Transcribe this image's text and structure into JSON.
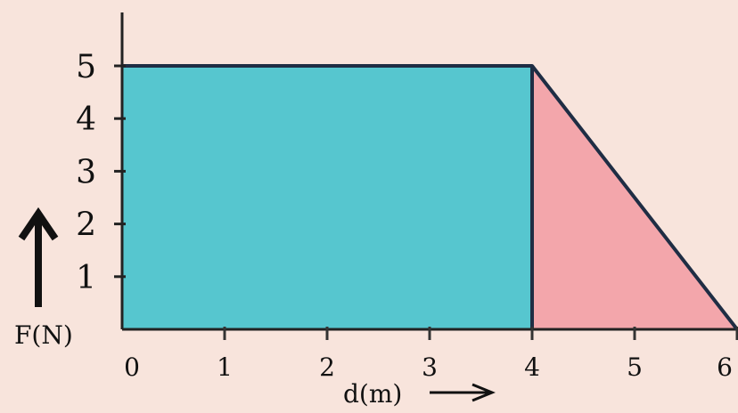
{
  "chart_data": {
    "type": "area",
    "xlabel": "d(m)",
    "ylabel": "F(N)",
    "xlim": [
      0,
      6
    ],
    "ylim": [
      0,
      5
    ],
    "x_ticks": [
      "0",
      "1",
      "2",
      "3",
      "4",
      "5",
      "6"
    ],
    "y_ticks": [
      "1",
      "2",
      "3",
      "4",
      "5"
    ],
    "regions": [
      {
        "shape": "rectangle",
        "points": [
          [
            0,
            0
          ],
          [
            0,
            5
          ],
          [
            4,
            5
          ],
          [
            4,
            0
          ]
        ],
        "color": "#56c6cf"
      },
      {
        "shape": "triangle",
        "points": [
          [
            4,
            0
          ],
          [
            4,
            5
          ],
          [
            6,
            0
          ]
        ],
        "color": "#f3a6ab"
      }
    ],
    "outline": [
      [
        0,
        5
      ],
      [
        4,
        5
      ],
      [
        6,
        0
      ]
    ],
    "colors": {
      "background": "#f8e4dc",
      "axis": "#222222",
      "outline": "#1f2d44"
    }
  }
}
